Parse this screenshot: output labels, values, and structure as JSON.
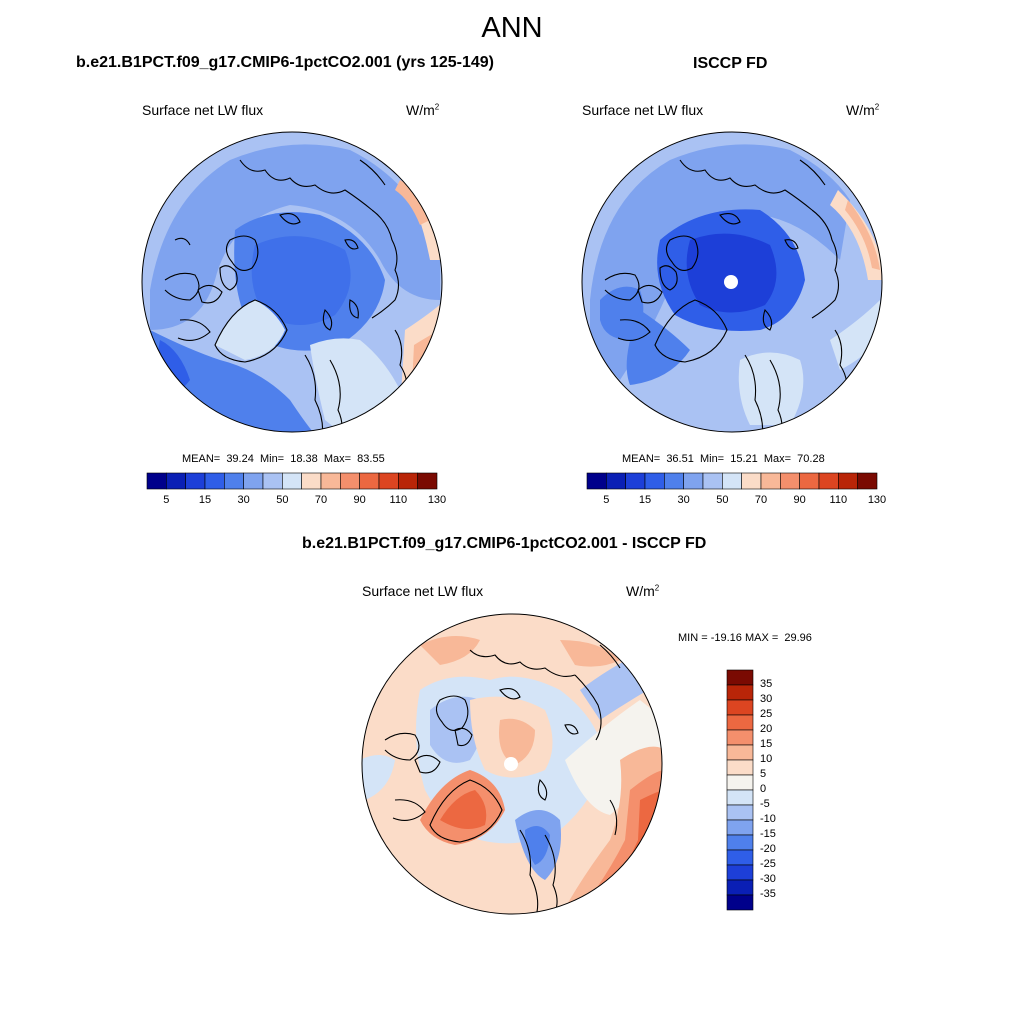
{
  "title": "ANN",
  "panels": {
    "model": {
      "title": "b.e21.B1PCT.f09_g17.CMIP6-1pctCO2.001 (yrs 125-149)",
      "variable": "Surface net LW flux",
      "units": "W/m",
      "units_sup": "2",
      "stats": "MEAN=  39.24  Min=  18.38  Max=  83.55"
    },
    "obs": {
      "title": "ISCCP FD",
      "variable": "Surface net LW flux",
      "units": "W/m",
      "units_sup": "2",
      "stats": "MEAN=  36.51  Min=  15.21  Max=  70.28"
    },
    "diff": {
      "title": "b.e21.B1PCT.f09_g17.CMIP6-1pctCO2.001 - ISCCP FD",
      "variable": "Surface net LW flux",
      "units": "W/m",
      "units_sup": "2",
      "stats": "MIN = -19.16 MAX =  29.96"
    }
  },
  "colorbar_main": {
    "labels": [
      "5",
      "15",
      "30",
      "50",
      "70",
      "90",
      "110",
      "130"
    ],
    "colors": [
      "#00008b",
      "#0a1fb5",
      "#1d3fd8",
      "#2f5ee8",
      "#4f80ec",
      "#7fa3ef",
      "#aac2f3",
      "#d4e4f7",
      "#fbdcc8",
      "#f8b898",
      "#f48f6c",
      "#ec6841",
      "#dc4521",
      "#b92508",
      "#7a0a02"
    ]
  },
  "colorbar_diff": {
    "labels": [
      "35",
      "30",
      "25",
      "20",
      "15",
      "10",
      "5",
      "0",
      "-5",
      "-10",
      "-15",
      "-20",
      "-25",
      "-30",
      "-35"
    ],
    "colors": [
      "#7a0a02",
      "#b92508",
      "#dc4521",
      "#ec6841",
      "#f48f6c",
      "#f8b898",
      "#fbdcc8",
      "#f5f3ee",
      "#d4e4f7",
      "#aac2f3",
      "#7fa3ef",
      "#4f80ec",
      "#2f5ee8",
      "#1d3fd8",
      "#0a1fb5",
      "#00008b"
    ]
  }
}
